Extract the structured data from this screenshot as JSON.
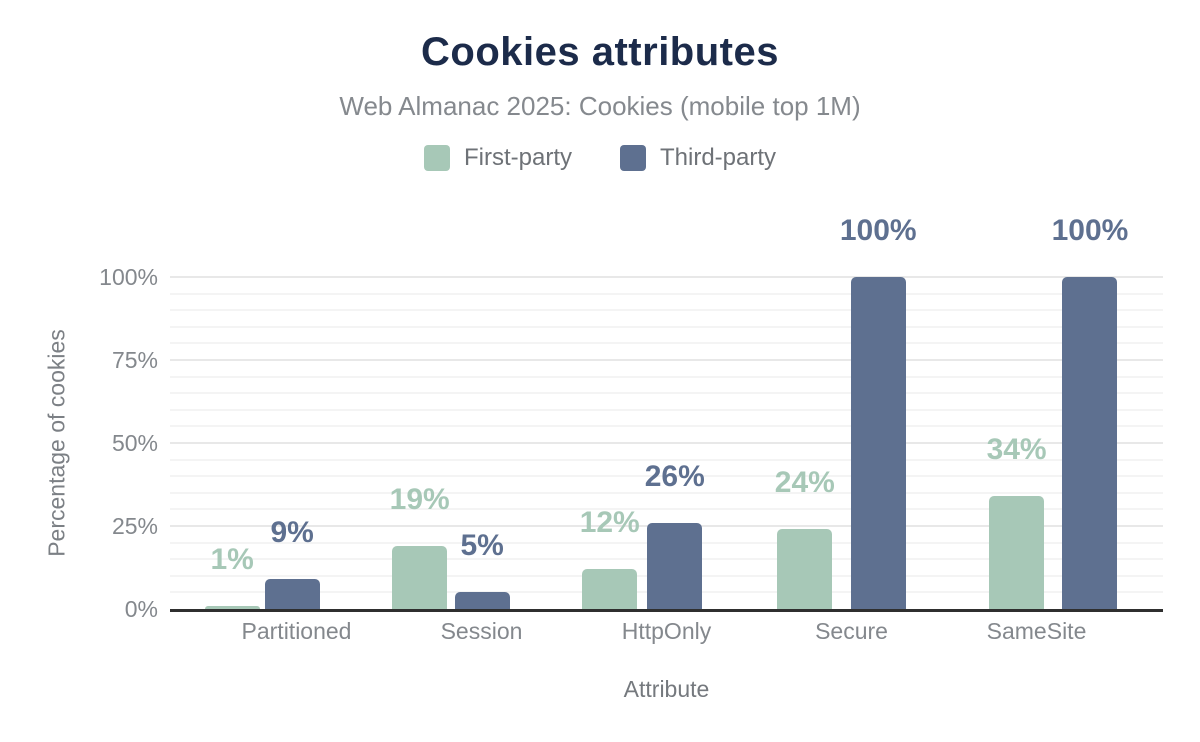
{
  "title": "Cookies attributes",
  "subtitle": "Web Almanac 2025: Cookies (mobile top 1M)",
  "colors": {
    "title": "#1c2b4a",
    "first_party": "#a7c8b7",
    "third_party": "#5e7090",
    "axis_line": "#2f2f2f"
  },
  "legend": [
    {
      "name": "First-party",
      "color": "#a7c8b7"
    },
    {
      "name": "Third-party",
      "color": "#5e7090"
    }
  ],
  "chart_data": {
    "type": "bar",
    "categories": [
      "Partitioned",
      "Session",
      "HttpOnly",
      "Secure",
      "SameSite"
    ],
    "series": [
      {
        "name": "First-party",
        "color": "#a7c8b7",
        "values": [
          1,
          19,
          12,
          24,
          34
        ],
        "labels": [
          "1%",
          "19%",
          "12%",
          "24%",
          "34%"
        ]
      },
      {
        "name": "Third-party",
        "color": "#5e7090",
        "values": [
          9,
          5,
          26,
          100,
          100
        ],
        "labels": [
          "9%",
          "5%",
          "26%",
          "100%",
          "100%"
        ]
      }
    ],
    "xlabel": "Attribute",
    "ylabel": "Percentage of cookies",
    "ylim": [
      0,
      100
    ],
    "yticks": [
      0,
      25,
      50,
      75,
      100
    ],
    "ytick_labels": [
      "0%",
      "25%",
      "50%",
      "75%",
      "100%"
    ],
    "minor_grid_step": 5,
    "major_grid_step": 25,
    "grid": true,
    "legend_position": "top"
  }
}
